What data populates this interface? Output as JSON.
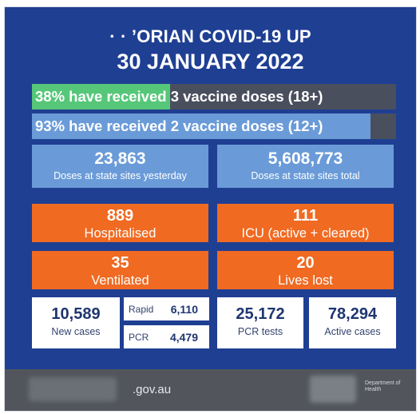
{
  "header": {
    "title_line1": "· · ’ORIAN COVID-19 UP",
    "title_line2": "30 JANUARY 2022"
  },
  "vaccine_bars": [
    {
      "label": "38% have received 3 vaccine doses (18+)",
      "percent": 38,
      "color": "#56c779"
    },
    {
      "label": "93% have received 2 vaccine doses (12+)",
      "percent": 93,
      "color": "#6a9bd8"
    }
  ],
  "doses": [
    {
      "value": "23,863",
      "label": "Doses at state sites yesterday"
    },
    {
      "value": "5,608,773",
      "label": "Doses at state sites total"
    }
  ],
  "stats": [
    {
      "value": "889",
      "label": "Hospitalised"
    },
    {
      "value": "111",
      "label": "ICU (active + cleared)"
    },
    {
      "value": "35",
      "label": "Ventilated"
    },
    {
      "value": "20",
      "label": "Lives lost"
    }
  ],
  "cases": {
    "new": {
      "value": "10,589",
      "label": "New cases"
    },
    "rapid": {
      "label": "Rapid",
      "value": "6,110"
    },
    "pcr": {
      "label": "PCR",
      "value": "4,479"
    },
    "pcr_tests": {
      "value": "25,172",
      "label": "PCR tests"
    },
    "active": {
      "value": "78,294",
      "label": "Active cases"
    }
  },
  "footer": {
    "website": ".gov.au",
    "department": "Department of Health"
  },
  "colors": {
    "background": "#1f3f93",
    "orange": "#f06a22",
    "light_blue": "#6a9bd8",
    "green": "#56c779"
  }
}
